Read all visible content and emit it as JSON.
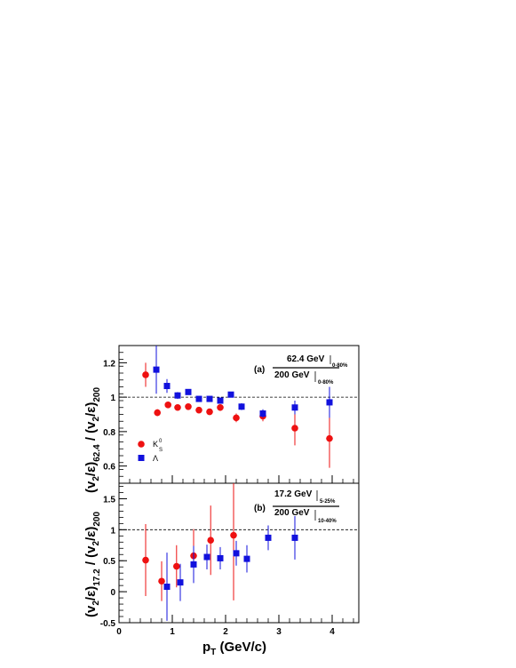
{
  "chart_data": [
    {
      "type": "scatter",
      "panel_label": "(a)",
      "ylabel": {
        "prefix": "(v",
        "sub1": "2",
        "mid": "/ε)",
        "sub2": "62.4",
        "slash": " / (v",
        "sub3": "2",
        "mid2": "/ε)",
        "sub4": "200"
      },
      "legend_ratio": {
        "num": "62.4 GeV",
        "num_sub": "0-80%",
        "den": "200 GeV",
        "den_sub": "0-80%"
      },
      "ylim": [
        0.5,
        1.3
      ],
      "yticks": [
        "0.6",
        "0.8",
        "1",
        "1.2"
      ],
      "ref_line": 1,
      "legend": [
        {
          "label": "K",
          "sup": "0",
          "sub": "S",
          "marker": "circle",
          "color": "#ee1111"
        },
        {
          "label": "Λ",
          "marker": "square",
          "color": "#1111dd"
        }
      ],
      "series": [
        {
          "name": "K0S",
          "marker": "circle",
          "color": "#ee1111",
          "points": [
            {
              "x": 0.5,
              "y": 1.13,
              "err": 0.07
            },
            {
              "x": 0.72,
              "y": 0.91,
              "err": 0.02
            },
            {
              "x": 0.92,
              "y": 0.955,
              "err": 0.012
            },
            {
              "x": 1.1,
              "y": 0.94,
              "err": 0.012
            },
            {
              "x": 1.3,
              "y": 0.945,
              "err": 0.012
            },
            {
              "x": 1.5,
              "y": 0.925,
              "err": 0.012
            },
            {
              "x": 1.7,
              "y": 0.915,
              "err": 0.015
            },
            {
              "x": 1.9,
              "y": 0.94,
              "err": 0.02
            },
            {
              "x": 2.2,
              "y": 0.88,
              "err": 0.025
            },
            {
              "x": 2.7,
              "y": 0.89,
              "err": 0.03
            },
            {
              "x": 3.3,
              "y": 0.82,
              "err": 0.1
            },
            {
              "x": 3.95,
              "y": 0.76,
              "err": 0.17
            }
          ]
        },
        {
          "name": "Lambda",
          "marker": "square",
          "color": "#1111dd",
          "points": [
            {
              "x": 0.7,
              "y": 1.16,
              "err": 0.14
            },
            {
              "x": 0.9,
              "y": 1.065,
              "err": 0.04
            },
            {
              "x": 1.1,
              "y": 1.01,
              "err": 0.02
            },
            {
              "x": 1.3,
              "y": 1.03,
              "err": 0.015
            },
            {
              "x": 1.5,
              "y": 0.99,
              "err": 0.012
            },
            {
              "x": 1.7,
              "y": 0.99,
              "err": 0.012
            },
            {
              "x": 1.9,
              "y": 0.98,
              "err": 0.012
            },
            {
              "x": 2.1,
              "y": 1.015,
              "err": 0.015
            },
            {
              "x": 2.3,
              "y": 0.945,
              "err": 0.02
            },
            {
              "x": 2.7,
              "y": 0.905,
              "err": 0.025
            },
            {
              "x": 3.3,
              "y": 0.94,
              "err": 0.04
            },
            {
              "x": 3.95,
              "y": 0.97,
              "err": 0.09
            }
          ]
        }
      ]
    },
    {
      "type": "scatter",
      "panel_label": "(b)",
      "ylabel": {
        "prefix": "(v",
        "sub1": "2",
        "mid": "/ε)",
        "sub2": "17.2",
        "slash": " / (v",
        "sub3": "2",
        "mid2": "/ε)",
        "sub4": "200"
      },
      "legend_ratio": {
        "num": "17.2 GeV",
        "num_sub": "5-25%",
        "den": "200 GeV",
        "den_sub": "10-40%"
      },
      "xlabel": {
        "main": "p",
        "sub": "T",
        "unit": " (GeV/c)"
      },
      "xlim": [
        0,
        4.5
      ],
      "xticks": [
        "0",
        "1",
        "2",
        "3",
        "4"
      ],
      "ylim": [
        -0.5,
        1.75
      ],
      "yticks": [
        "-0.5",
        "0",
        "0.5",
        "1",
        "1.5"
      ],
      "ref_line": 1,
      "series": [
        {
          "name": "K0S",
          "marker": "circle",
          "color": "#ee1111",
          "points": [
            {
              "x": 0.5,
              "y": 0.51,
              "err": 0.58
            },
            {
              "x": 0.8,
              "y": 0.17,
              "err": 0.32
            },
            {
              "x": 1.08,
              "y": 0.41,
              "err": 0.34
            },
            {
              "x": 1.4,
              "y": 0.58,
              "err": 0.43
            },
            {
              "x": 1.72,
              "y": 0.83,
              "err": 0.56
            },
            {
              "x": 2.15,
              "y": 0.91,
              "err": 1.05
            }
          ]
        },
        {
          "name": "Lambda",
          "marker": "square",
          "color": "#1111dd",
          "points": [
            {
              "x": 0.9,
              "y": 0.08,
              "err": 0.55
            },
            {
              "x": 1.15,
              "y": 0.15,
              "err": 0.3
            },
            {
              "x": 1.4,
              "y": 0.44,
              "err": 0.3
            },
            {
              "x": 1.65,
              "y": 0.56,
              "err": 0.2
            },
            {
              "x": 1.9,
              "y": 0.54,
              "err": 0.18
            },
            {
              "x": 2.2,
              "y": 0.62,
              "err": 0.2
            },
            {
              "x": 2.4,
              "y": 0.53,
              "err": 0.22
            },
            {
              "x": 2.8,
              "y": 0.87,
              "err": 0.2
            },
            {
              "x": 3.3,
              "y": 0.87,
              "err": 0.35
            }
          ]
        }
      ]
    }
  ]
}
